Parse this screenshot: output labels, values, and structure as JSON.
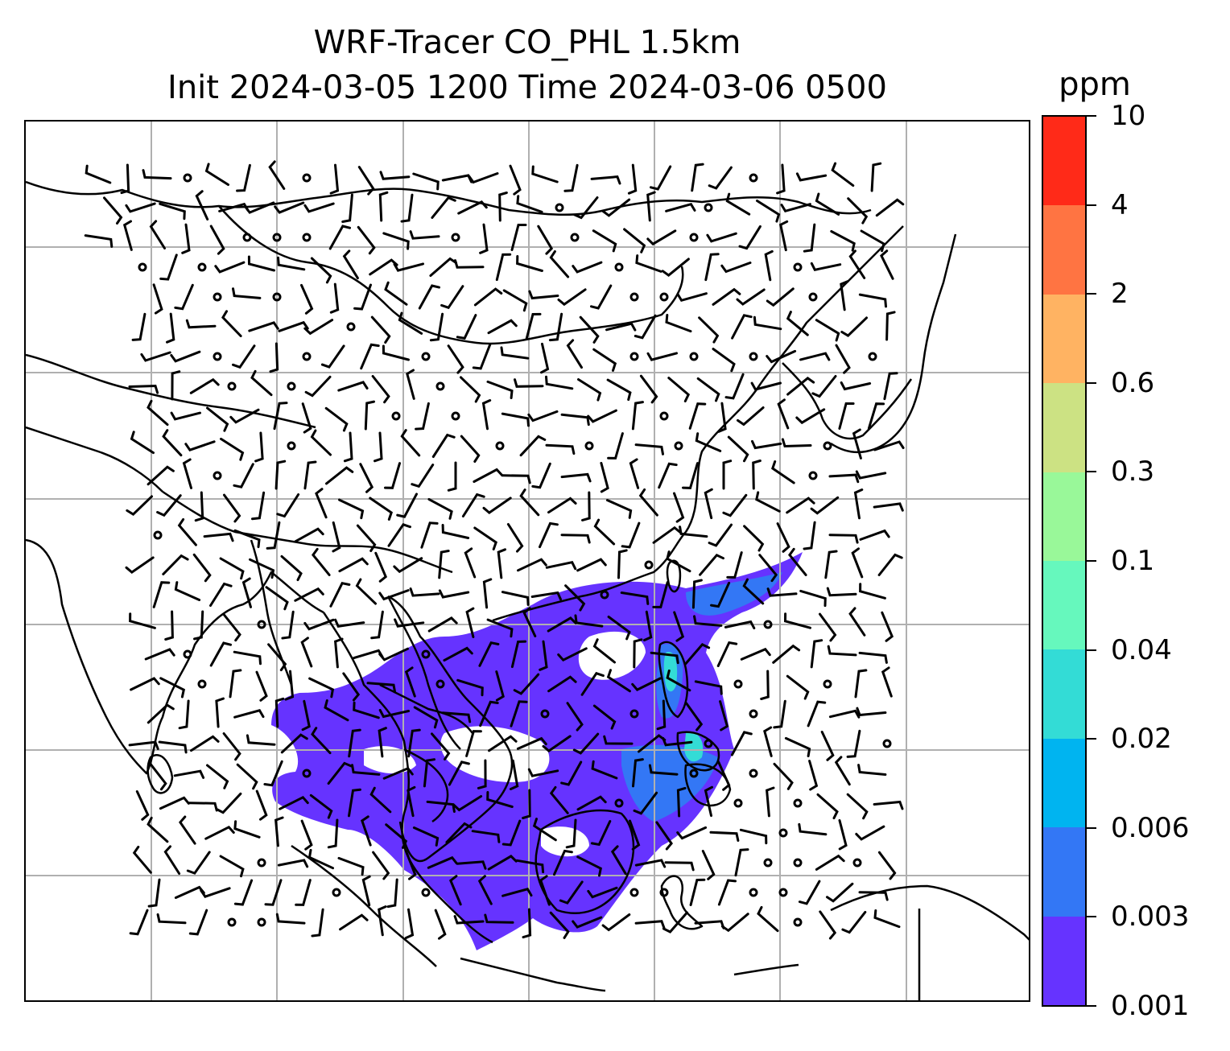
{
  "title": {
    "line1": "WRF-Tracer CO_PHL 1.5km",
    "line2": "Init 2024-03-05 1200 Time 2024-03-06 0500"
  },
  "colorbar": {
    "unit": "ppm",
    "levels": [
      "0.001",
      "0.003",
      "0.006",
      "0.02",
      "0.04",
      "0.1",
      "0.3",
      "0.6",
      "2",
      "4",
      "10"
    ],
    "colors": [
      "#6633ff",
      "#3377f5",
      "#00b4f0",
      "#33dcd6",
      "#66f8bd",
      "#99f899",
      "#cce283",
      "#ffb362",
      "#ff7442",
      "#ff2a18"
    ]
  },
  "map": {
    "gridlines": "on",
    "plume_colors": {
      "low": "#6633ff",
      "mid": "#3377f5",
      "high": "#33dcd6"
    },
    "coast_color": "#000000",
    "barb_color": "#000000",
    "grid_color": "#b0b0b0"
  }
}
